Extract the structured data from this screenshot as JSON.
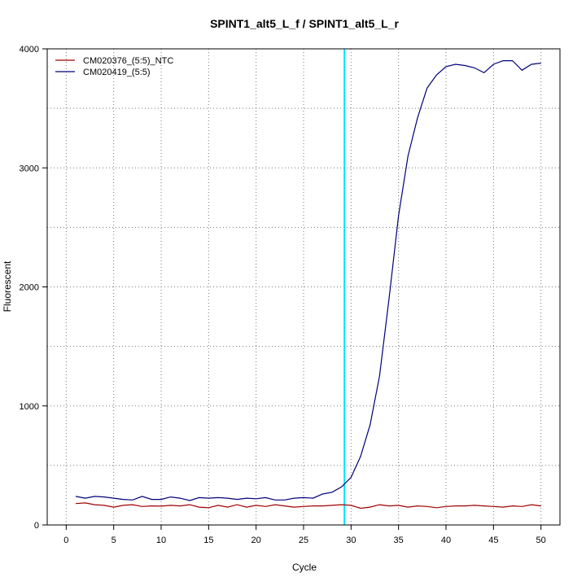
{
  "chart_data": {
    "type": "line",
    "title": "SPINT1_alt5_L_f / SPINT1_alt5_L_r",
    "xlabel": "Cycle",
    "ylabel": "Fluorescent",
    "xlim": [
      -2,
      52
    ],
    "ylim": [
      0,
      4000
    ],
    "x_ticks": [
      0,
      5,
      10,
      15,
      20,
      25,
      30,
      35,
      40,
      45,
      50
    ],
    "y_ticks": [
      0,
      1000,
      2000,
      3000,
      4000
    ],
    "grid": true,
    "legend_position": "top-left",
    "threshold_line": {
      "x": 29.3,
      "color": "#00e5ff"
    },
    "x": [
      1,
      2,
      3,
      4,
      5,
      6,
      7,
      8,
      9,
      10,
      11,
      12,
      13,
      14,
      15,
      16,
      17,
      18,
      19,
      20,
      21,
      22,
      23,
      24,
      25,
      26,
      27,
      28,
      29,
      30,
      31,
      32,
      33,
      34,
      35,
      36,
      37,
      38,
      39,
      40,
      41,
      42,
      43,
      44,
      45,
      46,
      47,
      48,
      49,
      50
    ],
    "series": [
      {
        "name": "CM020376_(5:5)_NTC",
        "color": "#a00000",
        "values": [
          180,
          185,
          170,
          165,
          150,
          165,
          170,
          155,
          160,
          158,
          165,
          160,
          170,
          150,
          145,
          165,
          150,
          170,
          150,
          165,
          155,
          170,
          160,
          150,
          155,
          160,
          160,
          165,
          170,
          165,
          140,
          150,
          170,
          160,
          165,
          150,
          160,
          155,
          145,
          155,
          160,
          160,
          165,
          160,
          155,
          150,
          160,
          155,
          170,
          160
        ]
      },
      {
        "name": "CM020419_(5:5)",
        "color": "#00007a",
        "values": [
          240,
          225,
          240,
          235,
          225,
          215,
          210,
          240,
          215,
          215,
          235,
          225,
          205,
          230,
          225,
          230,
          225,
          215,
          225,
          220,
          230,
          210,
          210,
          225,
          230,
          225,
          260,
          275,
          320,
          400,
          575,
          840,
          1250,
          1900,
          2600,
          3100,
          3420,
          3670,
          3780,
          3850,
          3870,
          3860,
          3840,
          3800,
          3870,
          3900,
          3900,
          3820,
          3870,
          3880
        ]
      }
    ]
  }
}
